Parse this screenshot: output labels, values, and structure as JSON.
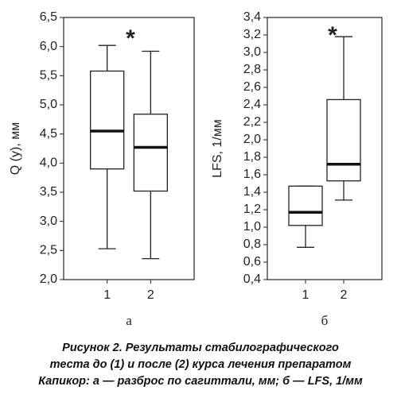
{
  "chart_data": [
    {
      "type": "box",
      "y_label": "Q (y), мм",
      "panel_label": "а",
      "annotation": "*",
      "categories": [
        "1",
        "2"
      ],
      "boxes": [
        {
          "min": 2.53,
          "q1": 3.9,
          "median": 4.55,
          "q3": 5.58,
          "max": 6.02
        },
        {
          "min": 2.36,
          "q1": 3.52,
          "median": 4.27,
          "q3": 4.84,
          "max": 5.92
        }
      ],
      "color": "#ffffff",
      "ylim": [
        2.0,
        6.5
      ],
      "yticks": [
        {
          "value": 2.0,
          "label": "2,0"
        },
        {
          "value": 2.5,
          "label": "2,5"
        },
        {
          "value": 3.0,
          "label": "3,0"
        },
        {
          "value": 3.5,
          "label": "3,5"
        },
        {
          "value": 4.0,
          "label": "4,0"
        },
        {
          "value": 4.5,
          "label": "4,5"
        },
        {
          "value": 5.0,
          "label": "5,0"
        },
        {
          "value": 5.5,
          "label": "5,5"
        },
        {
          "value": 6.0,
          "label": "6,0"
        },
        {
          "value": 6.5,
          "label": "6,5"
        }
      ]
    },
    {
      "type": "box",
      "y_label": "LFS, 1/мм",
      "panel_label": "б",
      "annotation": "*",
      "categories": [
        "1",
        "2"
      ],
      "boxes": [
        {
          "min": 0.77,
          "q1": 1.02,
          "median": 1.17,
          "q3": 1.47,
          "max": 1.47
        },
        {
          "min": 1.31,
          "q1": 1.53,
          "median": 1.72,
          "q3": 2.46,
          "max": 3.18
        }
      ],
      "color": "#ffffff",
      "ylim": [
        0.4,
        3.4
      ],
      "yticks": [
        {
          "value": 0.4,
          "label": "0,4"
        },
        {
          "value": 0.6,
          "label": "0,6"
        },
        {
          "value": 0.8,
          "label": "0,8"
        },
        {
          "value": 1.0,
          "label": "1,0"
        },
        {
          "value": 1.2,
          "label": "1,2"
        },
        {
          "value": 1.4,
          "label": "1,4"
        },
        {
          "value": 1.6,
          "label": "1,6"
        },
        {
          "value": 1.8,
          "label": "1,8"
        },
        {
          "value": 2.0,
          "label": "2,0"
        },
        {
          "value": 2.2,
          "label": "2,2"
        },
        {
          "value": 2.4,
          "label": "2,4"
        },
        {
          "value": 2.6,
          "label": "2,6"
        },
        {
          "value": 2.8,
          "label": "2,8"
        },
        {
          "value": 3.0,
          "label": "3,0"
        },
        {
          "value": 3.2,
          "label": "3,2"
        },
        {
          "value": 3.4,
          "label": "3,4"
        }
      ]
    }
  ],
  "caption": [
    "Рисунок 2. Результаты стабилографического",
    "теста до (1) и после (2) курса лечения препаратом",
    "Капикор: а — разброс по сагиттали, мм; б — LFS, 1/мм"
  ]
}
